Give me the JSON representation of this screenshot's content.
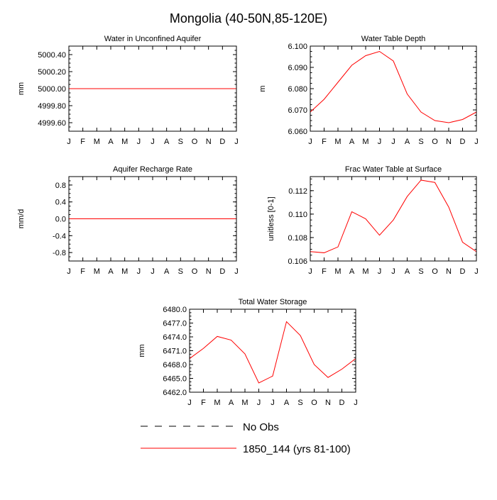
{
  "title": "Mongolia (40-50N,85-120E)",
  "months": [
    "J",
    "F",
    "M",
    "A",
    "M",
    "J",
    "J",
    "A",
    "S",
    "O",
    "N",
    "D",
    "J"
  ],
  "series_color": "#ff0000",
  "legend": [
    {
      "label": "No Obs",
      "style": "dashed",
      "color": "#000000"
    },
    {
      "label": "1850_144 (yrs 81-100)",
      "style": "solid",
      "color": "#ff0000"
    }
  ],
  "chart_data": [
    {
      "type": "line",
      "title": "Water in Unconfined Aquifer",
      "ylabel": "mm",
      "ylim": [
        4999.5,
        5000.5
      ],
      "yticks": [
        4999.6,
        4999.8,
        5000.0,
        5000.2,
        5000.4
      ],
      "ytick_labels": [
        "4999.60",
        "4999.80",
        "5000.00",
        "5000.20",
        "5000.40"
      ],
      "x": [
        "J",
        "F",
        "M",
        "A",
        "M",
        "J",
        "J",
        "A",
        "S",
        "O",
        "N",
        "D",
        "J"
      ],
      "series": [
        {
          "values": [
            5000.0,
            5000.0,
            5000.0,
            5000.0,
            5000.0,
            5000.0,
            5000.0,
            5000.0,
            5000.0,
            5000.0,
            5000.0,
            5000.0,
            5000.0
          ]
        }
      ]
    },
    {
      "type": "line",
      "title": "Water Table Depth",
      "ylabel": "m",
      "ylim": [
        6.06,
        6.1
      ],
      "yticks": [
        6.06,
        6.07,
        6.08,
        6.09,
        6.1
      ],
      "ytick_labels": [
        "6.060",
        "6.070",
        "6.080",
        "6.090",
        "6.100"
      ],
      "x": [
        "J",
        "F",
        "M",
        "A",
        "M",
        "J",
        "J",
        "A",
        "S",
        "O",
        "N",
        "D",
        "J"
      ],
      "series": [
        {
          "values": [
            6.069,
            6.075,
            6.083,
            6.091,
            6.0955,
            6.0975,
            6.093,
            6.0775,
            6.069,
            6.065,
            6.064,
            6.0655,
            6.069
          ]
        }
      ]
    },
    {
      "type": "line",
      "title": "Aquifer Recharge Rate",
      "ylabel": "mm/d",
      "ylim": [
        -1.0,
        1.0
      ],
      "yticks": [
        -0.8,
        -0.4,
        0.0,
        0.4,
        0.8
      ],
      "ytick_labels": [
        "-0.8",
        "-0.4",
        "0.0",
        "0.4",
        "0.8"
      ],
      "x": [
        "J",
        "F",
        "M",
        "A",
        "M",
        "J",
        "J",
        "A",
        "S",
        "O",
        "N",
        "D",
        "J"
      ],
      "series": [
        {
          "values": [
            0,
            0,
            0,
            0,
            0,
            0,
            0,
            0,
            0,
            0,
            0,
            0,
            0
          ]
        }
      ]
    },
    {
      "type": "line",
      "title": "Frac Water Table at Surface",
      "ylabel": "unitless [0-1]",
      "ylim": [
        0.106,
        0.1132
      ],
      "yticks": [
        0.106,
        0.108,
        0.11,
        0.112
      ],
      "ytick_labels": [
        "0.106",
        "0.108",
        "0.110",
        "0.112"
      ],
      "x": [
        "J",
        "F",
        "M",
        "A",
        "M",
        "J",
        "J",
        "A",
        "S",
        "O",
        "N",
        "D",
        "J"
      ],
      "series": [
        {
          "values": [
            0.1068,
            0.1067,
            0.1072,
            0.1102,
            0.1096,
            0.1082,
            0.1095,
            0.1115,
            0.1129,
            0.1127,
            0.1106,
            0.1076,
            0.1068
          ]
        }
      ]
    },
    {
      "type": "line",
      "title": "Total Water Storage",
      "ylabel": "mm",
      "ylim": [
        6462.0,
        6480.0
      ],
      "yticks": [
        6462,
        6465,
        6468,
        6471,
        6474,
        6477,
        6480
      ],
      "ytick_labels": [
        "6462.0",
        "6465.0",
        "6468.0",
        "6471.0",
        "6474.0",
        "6477.0",
        "6480.0"
      ],
      "x": [
        "J",
        "F",
        "M",
        "A",
        "M",
        "J",
        "J",
        "A",
        "S",
        "O",
        "N",
        "D",
        "J"
      ],
      "series": [
        {
          "values": [
            6469.3,
            6471.5,
            6474.1,
            6473.3,
            6470.3,
            6464.0,
            6465.5,
            6477.3,
            6474.3,
            6468.0,
            6465.2,
            6467.0,
            6469.3
          ]
        }
      ]
    }
  ]
}
